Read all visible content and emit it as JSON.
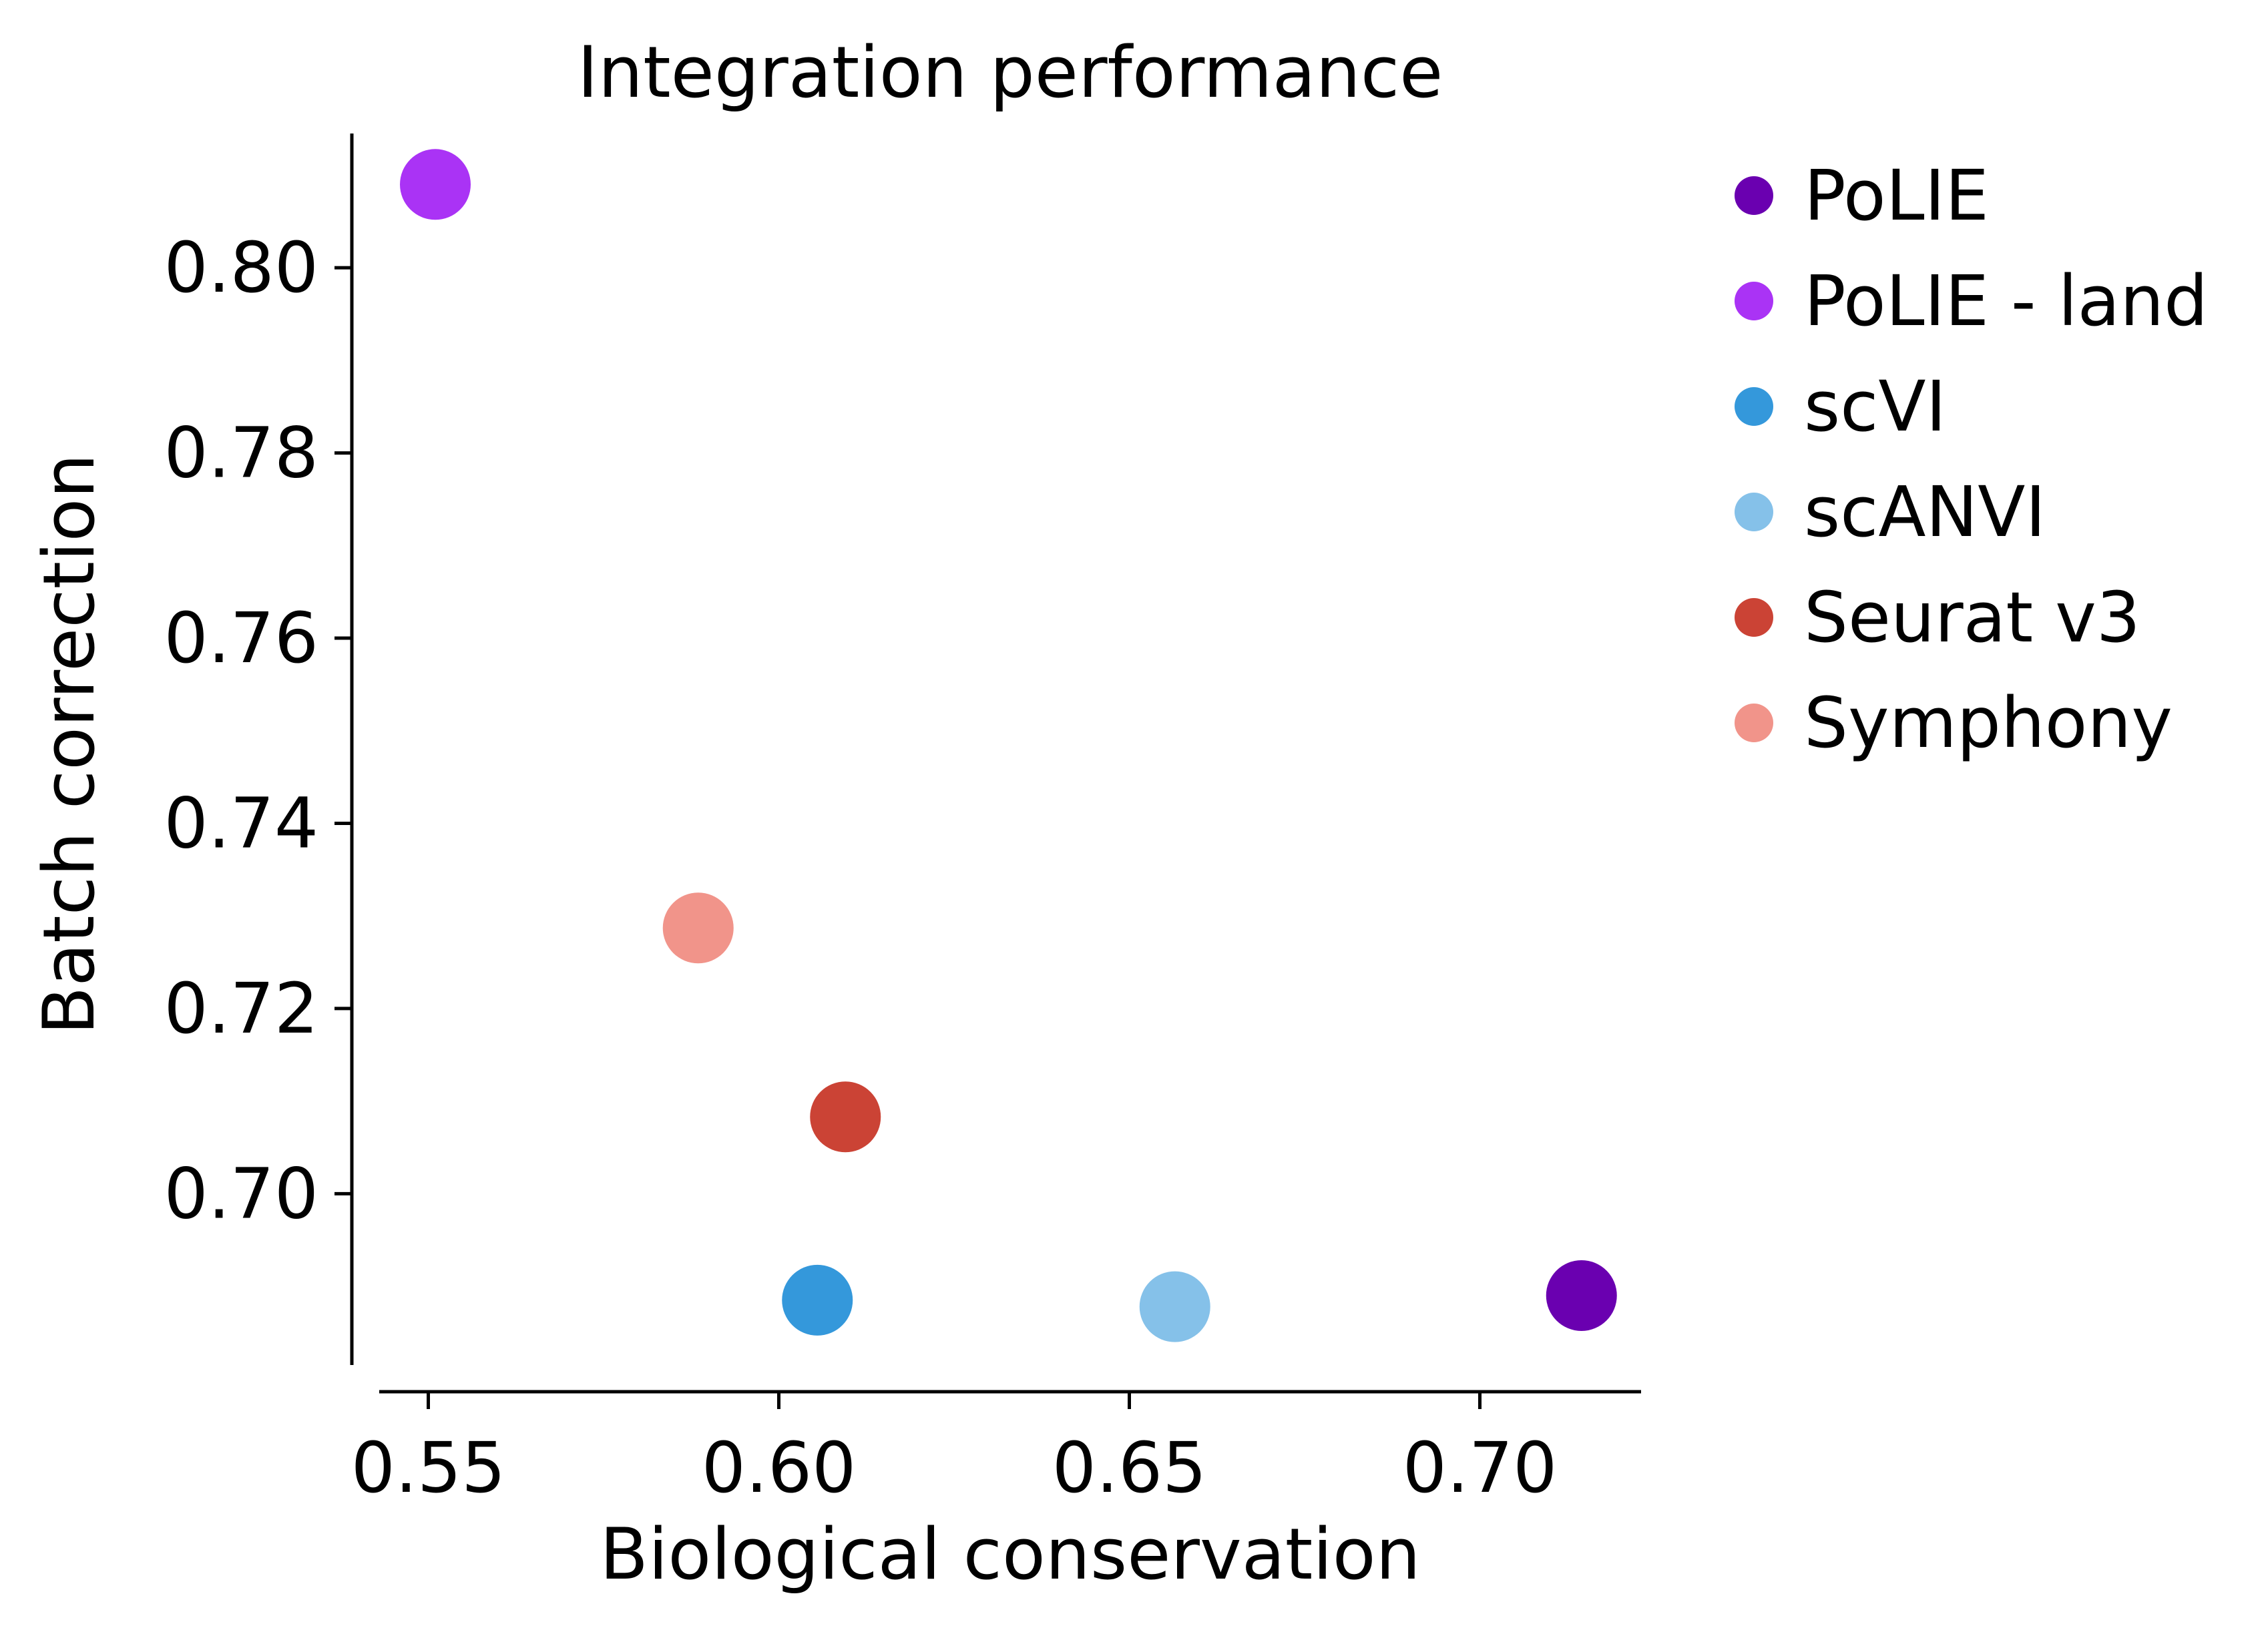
{
  "chart_data": {
    "type": "scatter",
    "title": "Integration performance",
    "xlabel": "Biological conservation",
    "ylabel": "Batch correction",
    "xlim": [
      0.543,
      0.723
    ],
    "ylim": [
      0.6815,
      0.8145
    ],
    "x_ticks": [
      "0.55",
      "0.60",
      "0.65",
      "0.70"
    ],
    "x_tick_values": [
      0.55,
      0.6,
      0.65,
      0.7
    ],
    "y_ticks": [
      "0.70",
      "0.72",
      "0.74",
      "0.76",
      "0.78",
      "0.80"
    ],
    "y_tick_values": [
      0.7,
      0.72,
      0.74,
      0.76,
      0.78,
      0.8
    ],
    "grid": false,
    "legend_position": "outside-right",
    "series": [
      {
        "name": "PoLIE",
        "color": "#6a00b0",
        "x": 0.7145,
        "y": 0.689
      },
      {
        "name": "PoLIE - land",
        "color": "#aa33f5",
        "x": 0.551,
        "y": 0.809
      },
      {
        "name": "scVI",
        "color": "#3498db",
        "x": 0.6055,
        "y": 0.6885
      },
      {
        "name": "scANVI",
        "color": "#85c1e9",
        "x": 0.6565,
        "y": 0.6878
      },
      {
        "name": "Seurat v3",
        "color": "#cb4335",
        "x": 0.6095,
        "y": 0.7083
      },
      {
        "name": "Symphony",
        "color": "#f1948a",
        "x": 0.5885,
        "y": 0.7287
      }
    ]
  }
}
